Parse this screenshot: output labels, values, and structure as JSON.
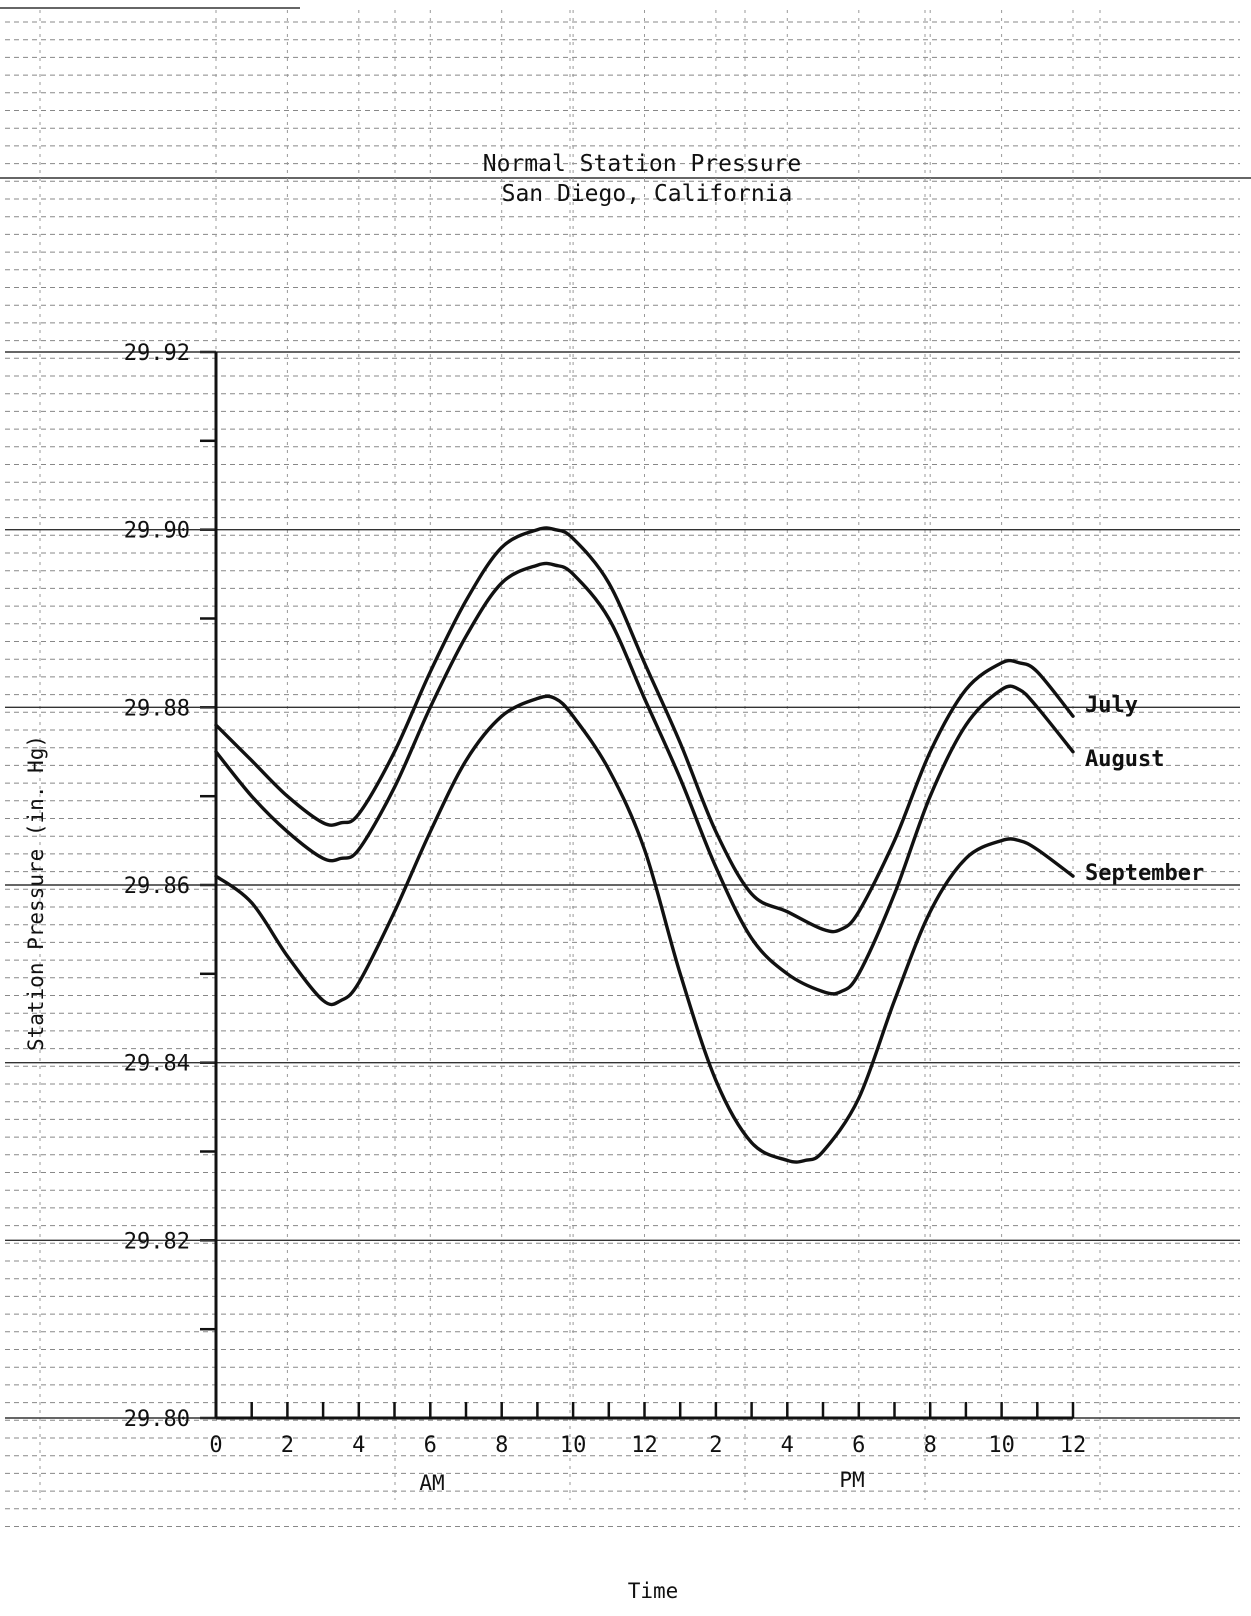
{
  "chart_data": {
    "type": "line",
    "title": "Normal Station Pressure",
    "subtitle": "San Diego, California",
    "xlabel": "Time",
    "ylabel": "Station Pressure (in. Hg)",
    "x_tick_labels": [
      "0",
      "2",
      "4",
      "6",
      "8",
      "10",
      "12",
      "2",
      "4",
      "6",
      "8",
      "10",
      "12"
    ],
    "x_period_labels": [
      "AM",
      "PM"
    ],
    "y_tick_labels": [
      "29.92",
      "29.90",
      "29.88",
      "29.86",
      "29.84",
      "29.82",
      "29.80"
    ],
    "xlim": [
      0,
      24
    ],
    "ylim": [
      29.8,
      29.92
    ],
    "grid": true,
    "legend": "labels at right end of each line",
    "series": [
      {
        "name": "July",
        "x": [
          0,
          1,
          2,
          3,
          3.5,
          4,
          5,
          6,
          7,
          8,
          9,
          9.5,
          10,
          11,
          12,
          13,
          14,
          15,
          16,
          17,
          17.5,
          18,
          19,
          20,
          21,
          22,
          22.5,
          23,
          24
        ],
        "y": [
          29.878,
          29.874,
          29.87,
          29.867,
          29.867,
          29.868,
          29.875,
          29.884,
          29.892,
          29.898,
          29.9,
          29.9,
          29.899,
          29.894,
          29.885,
          29.876,
          29.866,
          29.859,
          29.857,
          29.855,
          29.855,
          29.857,
          29.865,
          29.875,
          29.882,
          29.885,
          29.885,
          29.884,
          29.879
        ]
      },
      {
        "name": "August",
        "x": [
          0,
          1,
          2,
          3,
          3.5,
          4,
          5,
          6,
          7,
          8,
          9,
          9.5,
          10,
          11,
          12,
          13,
          14,
          15,
          16,
          17,
          17.5,
          18,
          19,
          20,
          21,
          22,
          22.5,
          23,
          24
        ],
        "y": [
          29.875,
          29.87,
          29.866,
          29.863,
          29.863,
          29.864,
          29.871,
          29.88,
          29.888,
          29.894,
          29.896,
          29.896,
          29.895,
          29.89,
          29.881,
          29.872,
          29.862,
          29.854,
          29.85,
          29.848,
          29.848,
          29.85,
          29.859,
          29.87,
          29.878,
          29.882,
          29.882,
          29.88,
          29.875
        ]
      },
      {
        "name": "September",
        "x": [
          0,
          1,
          2,
          3,
          3.5,
          4,
          5,
          6,
          7,
          8,
          9,
          9.5,
          10,
          11,
          12,
          13,
          14,
          15,
          16,
          16.5,
          17,
          18,
          19,
          20,
          21,
          22,
          22.5,
          23,
          24
        ],
        "y": [
          29.861,
          29.858,
          29.852,
          29.847,
          29.847,
          29.849,
          29.857,
          29.866,
          29.874,
          29.879,
          29.881,
          29.881,
          29.879,
          29.873,
          29.864,
          29.85,
          29.838,
          29.831,
          29.829,
          29.829,
          29.83,
          29.836,
          29.847,
          29.857,
          29.863,
          29.865,
          29.865,
          29.864,
          29.861
        ]
      }
    ]
  }
}
